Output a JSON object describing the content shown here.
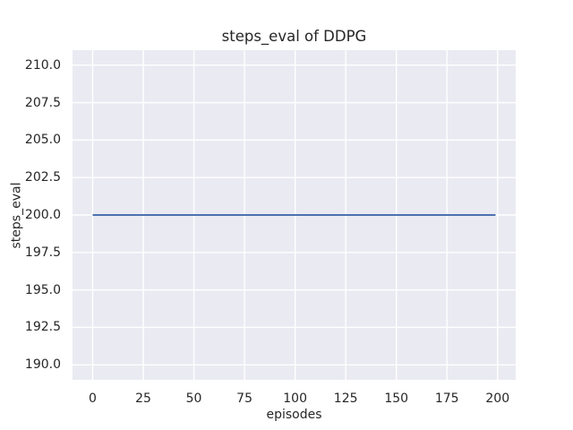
{
  "chart_data": {
    "type": "line",
    "title": "steps_eval of DDPG",
    "xlabel": "episodes",
    "ylabel": "steps_eval",
    "xlim": [
      -9.95,
      208.95
    ],
    "ylim": [
      189,
      211
    ],
    "x_tick_values": [
      0,
      25,
      50,
      75,
      100,
      125,
      150,
      175,
      200
    ],
    "x_tick_labels": [
      "0",
      "25",
      "50",
      "75",
      "100",
      "125",
      "150",
      "175",
      "200"
    ],
    "y_tick_values": [
      210,
      207.5,
      205,
      202.5,
      200,
      197.5,
      195,
      192.5,
      190
    ],
    "y_tick_labels": [
      "210.0",
      "207.5",
      "205.0",
      "202.5",
      "200.0",
      "197.5",
      "195.0",
      "192.5",
      "190.0"
    ],
    "grid": true,
    "legend": "none",
    "plot_background": "#eaeaf2",
    "grid_color": "#ffffff",
    "text_color": "#262626",
    "series": [
      {
        "name": "steps_eval",
        "color": "#4c72b0",
        "line_width": 2,
        "points": [
          [
            0,
            200
          ],
          [
            199,
            200
          ]
        ]
      }
    ]
  }
}
